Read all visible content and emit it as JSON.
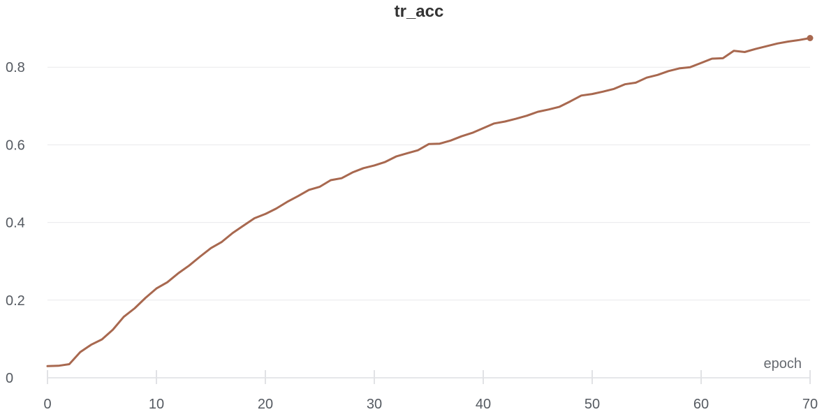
{
  "chart_data": {
    "type": "line",
    "title": "tr_acc",
    "xlabel": "epoch",
    "ylabel": "",
    "xlim": [
      0,
      70
    ],
    "ylim": [
      0,
      0.9
    ],
    "x_ticks": [
      0,
      10,
      20,
      30,
      40,
      50,
      60,
      70
    ],
    "x_tick_labels": [
      "0",
      "10",
      "20",
      "30",
      "40",
      "50",
      "60",
      "70"
    ],
    "y_ticks": [
      0,
      0.2,
      0.4,
      0.6,
      0.8
    ],
    "y_tick_labels": [
      "0",
      "0.2",
      "0.4",
      "0.6",
      "0.8"
    ],
    "grid": true,
    "legend": false,
    "series": [
      {
        "color": "#a8684f",
        "x": [
          0,
          1,
          2,
          3,
          4,
          5,
          6,
          7,
          8,
          9,
          10,
          11,
          12,
          13,
          14,
          15,
          16,
          17,
          18,
          19,
          20,
          21,
          22,
          23,
          24,
          25,
          26,
          27,
          28,
          29,
          30,
          31,
          32,
          33,
          34,
          35,
          36,
          37,
          38,
          39,
          40,
          41,
          42,
          43,
          44,
          45,
          46,
          47,
          48,
          49,
          50,
          51,
          52,
          53,
          54,
          55,
          56,
          57,
          58,
          59,
          60,
          61,
          62,
          63,
          64,
          65,
          66,
          67,
          68,
          69,
          70
        ],
        "y": [
          0.03,
          0.031,
          0.035,
          0.066,
          0.085,
          0.099,
          0.124,
          0.157,
          0.179,
          0.206,
          0.23,
          0.246,
          0.269,
          0.289,
          0.312,
          0.334,
          0.35,
          0.373,
          0.392,
          0.411,
          0.422,
          0.436,
          0.453,
          0.468,
          0.484,
          0.492,
          0.509,
          0.514,
          0.529,
          0.54,
          0.547,
          0.556,
          0.57,
          0.578,
          0.586,
          0.602,
          0.603,
          0.611,
          0.622,
          0.631,
          0.643,
          0.655,
          0.66,
          0.667,
          0.675,
          0.685,
          0.691,
          0.698,
          0.712,
          0.727,
          0.731,
          0.737,
          0.744,
          0.756,
          0.76,
          0.773,
          0.78,
          0.79,
          0.797,
          0.8,
          0.811,
          0.822,
          0.823,
          0.842,
          0.839,
          0.847,
          0.854,
          0.861,
          0.866,
          0.87,
          0.875
        ]
      }
    ]
  }
}
